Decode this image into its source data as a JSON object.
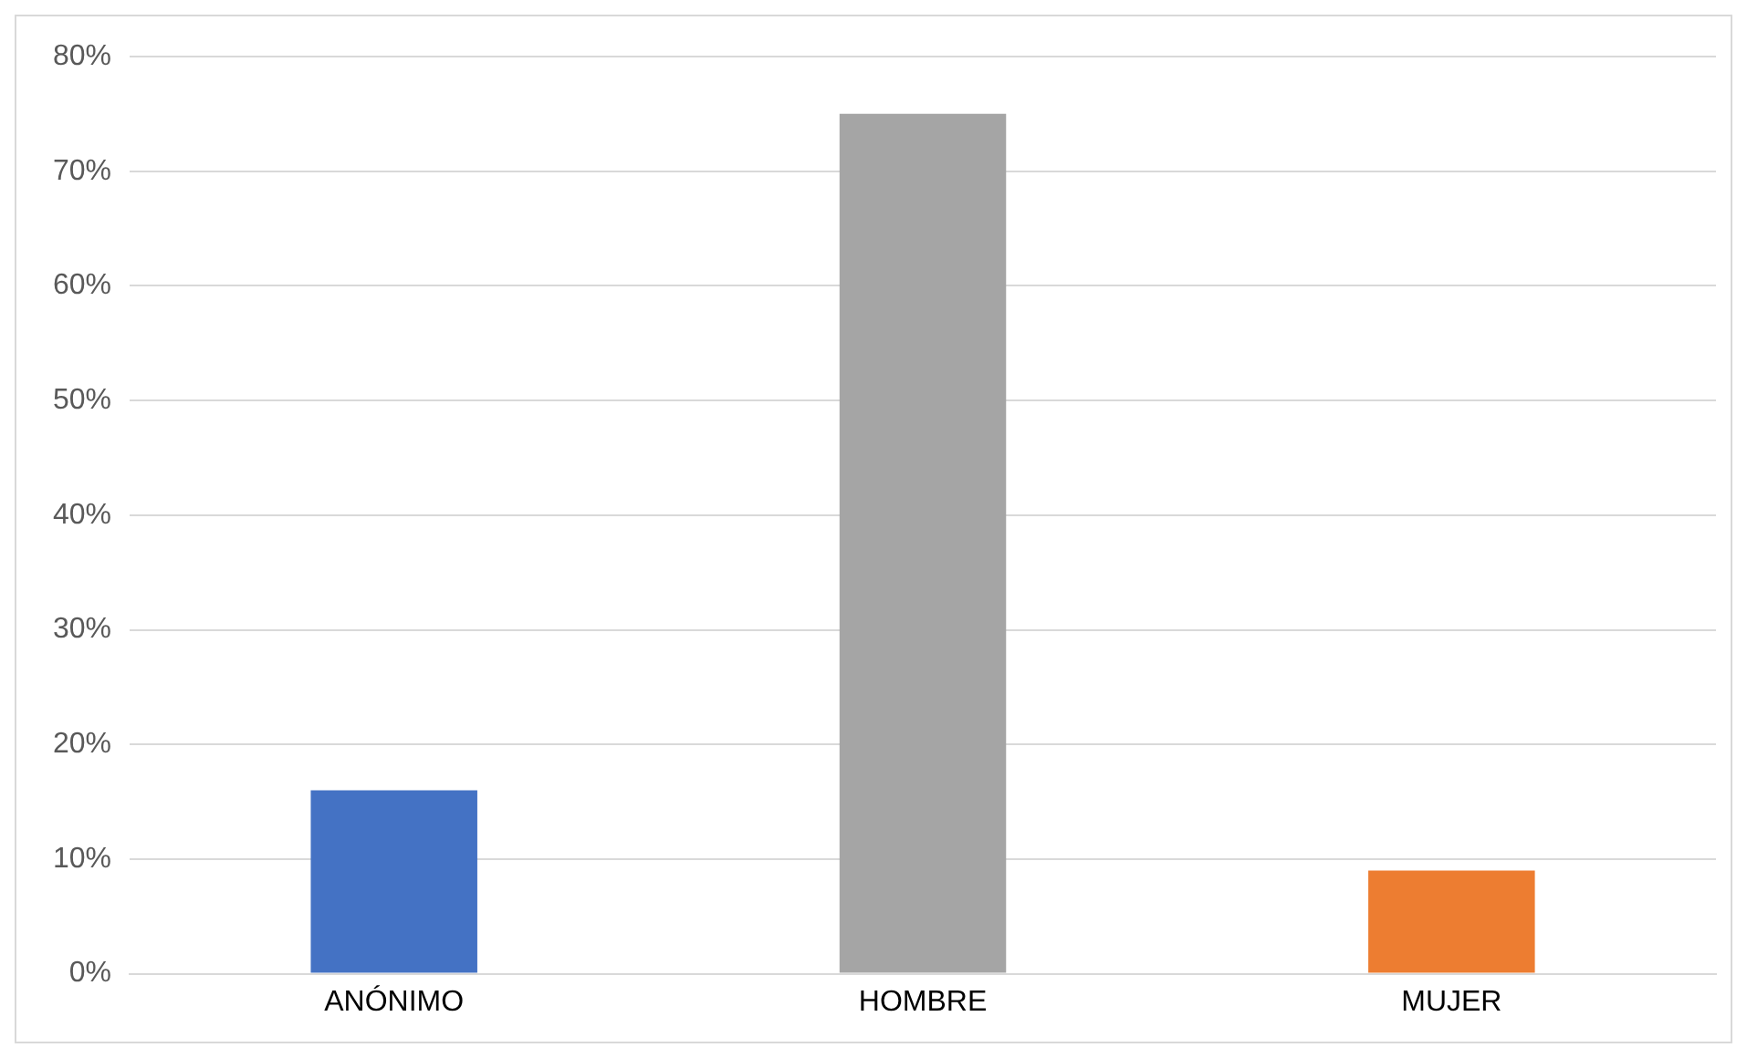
{
  "chart_data": {
    "type": "bar",
    "categories": [
      "ANÓNIMO",
      "HOMBRE",
      "MUJER"
    ],
    "values": [
      16,
      75,
      9
    ],
    "colors": [
      "#4472c4",
      "#a5a5a5",
      "#ed7d31"
    ],
    "ylim": [
      0,
      80
    ],
    "yticks": [
      {
        "value": 0,
        "label": "0%"
      },
      {
        "value": 10,
        "label": "10%"
      },
      {
        "value": 20,
        "label": "20%"
      },
      {
        "value": 30,
        "label": "30%"
      },
      {
        "value": 40,
        "label": "40%"
      },
      {
        "value": 50,
        "label": "50%"
      },
      {
        "value": 60,
        "label": "60%"
      },
      {
        "value": 70,
        "label": "70%"
      },
      {
        "value": 80,
        "label": "80%"
      }
    ],
    "grid": "y",
    "legend": false
  }
}
